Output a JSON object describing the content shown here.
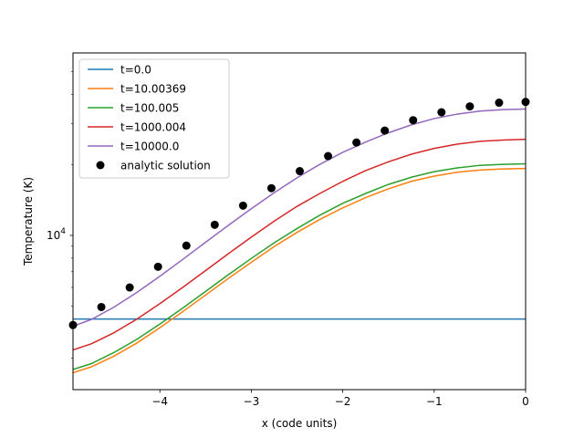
{
  "chart_data": {
    "type": "line",
    "title": "",
    "xlabel": "x (code units)",
    "ylabel": "Temperature (K)",
    "xlim": [
      -4.95,
      0
    ],
    "ylim": [
      2200,
      60000
    ],
    "yscale": "log",
    "x_ticks": [
      -4,
      -3,
      -2,
      -1,
      0
    ],
    "x_tick_labels": [
      "−4",
      "−3",
      "−2",
      "−1",
      "0"
    ],
    "y_tick_label_base": "10",
    "y_tick_label_exponent": "4",
    "y_major_tick": 10000,
    "y_minor_ticks": [
      3000,
      4000,
      5000,
      6000,
      7000,
      8000,
      9000,
      20000,
      30000,
      40000,
      50000
    ],
    "legend_position": "upper left",
    "series": [
      {
        "name": "t=0.0",
        "color": "#1f77b4",
        "x": [
          -4.95,
          -4.5,
          -4.0,
          -3.5,
          -3.0,
          -2.5,
          -2.0,
          -1.5,
          -1.0,
          -0.5,
          0.0
        ],
        "y": [
          4400,
          4400,
          4400,
          4400,
          4400,
          4400,
          4400,
          4400,
          4400,
          4400,
          4400
        ]
      },
      {
        "name": "t=10.00369",
        "color": "#ff7f0e",
        "x": [
          -4.95,
          -4.75,
          -4.5,
          -4.25,
          -4.0,
          -3.75,
          -3.5,
          -3.25,
          -3.0,
          -2.75,
          -2.5,
          -2.25,
          -2.0,
          -1.75,
          -1.5,
          -1.25,
          -1.0,
          -0.75,
          -0.5,
          -0.25,
          0.0
        ],
        "y": [
          2600,
          2750,
          3060,
          3480,
          4040,
          4730,
          5570,
          6560,
          7680,
          8960,
          10300,
          11700,
          13100,
          14500,
          15800,
          17000,
          17900,
          18600,
          19000,
          19200,
          19300
        ]
      },
      {
        "name": "t=100.005",
        "color": "#2ca02c",
        "x": [
          -4.95,
          -4.75,
          -4.5,
          -4.25,
          -4.0,
          -3.75,
          -3.5,
          -3.25,
          -3.0,
          -2.75,
          -2.5,
          -2.25,
          -2.0,
          -1.75,
          -1.5,
          -1.25,
          -1.0,
          -0.75,
          -0.5,
          -0.25,
          0.0
        ],
        "y": [
          2680,
          2840,
          3170,
          3610,
          4190,
          4900,
          5770,
          6800,
          7980,
          9300,
          10700,
          12200,
          13700,
          15100,
          16500,
          17700,
          18700,
          19400,
          19900,
          20100,
          20200
        ]
      },
      {
        "name": "t=1000.004",
        "color": "#d62728",
        "x": [
          -4.95,
          -4.75,
          -4.5,
          -4.25,
          -4.0,
          -3.75,
          -3.5,
          -3.25,
          -3.0,
          -2.75,
          -2.5,
          -2.25,
          -2.0,
          -1.75,
          -1.5,
          -1.25,
          -1.0,
          -0.75,
          -0.5,
          -0.25,
          0.0
        ],
        "y": [
          3250,
          3450,
          3850,
          4400,
          5120,
          6000,
          7080,
          8360,
          9830,
          11500,
          13300,
          15100,
          17000,
          18900,
          20600,
          22200,
          23500,
          24500,
          25200,
          25500,
          25700
        ]
      },
      {
        "name": "t=10000.0",
        "color": "#9467bd",
        "x": [
          -4.95,
          -4.75,
          -4.5,
          -4.25,
          -4.0,
          -3.75,
          -3.5,
          -3.25,
          -3.0,
          -2.75,
          -2.5,
          -2.25,
          -2.0,
          -1.75,
          -1.5,
          -1.25,
          -1.0,
          -0.75,
          -0.5,
          -0.25,
          0.0
        ],
        "y": [
          4100,
          4380,
          4950,
          5720,
          6700,
          7900,
          9350,
          11050,
          13000,
          15200,
          17600,
          20100,
          22600,
          25000,
          27400,
          29600,
          31500,
          32900,
          33900,
          34400,
          34600
        ]
      }
    ],
    "analytic_solution": {
      "name": "analytic solution",
      "color": "#000000",
      "x": [
        -4.95,
        -4.64,
        -4.33,
        -4.02,
        -3.71,
        -3.4,
        -3.09,
        -2.78,
        -2.47,
        -2.16,
        -1.85,
        -1.54,
        -1.23,
        -0.92,
        -0.61,
        -0.29,
        0.0
      ],
      "y": [
        4150,
        4950,
        6000,
        7350,
        9050,
        11100,
        13400,
        15900,
        18800,
        21800,
        24900,
        28000,
        31000,
        33500,
        35500,
        36800,
        37100
      ]
    }
  }
}
